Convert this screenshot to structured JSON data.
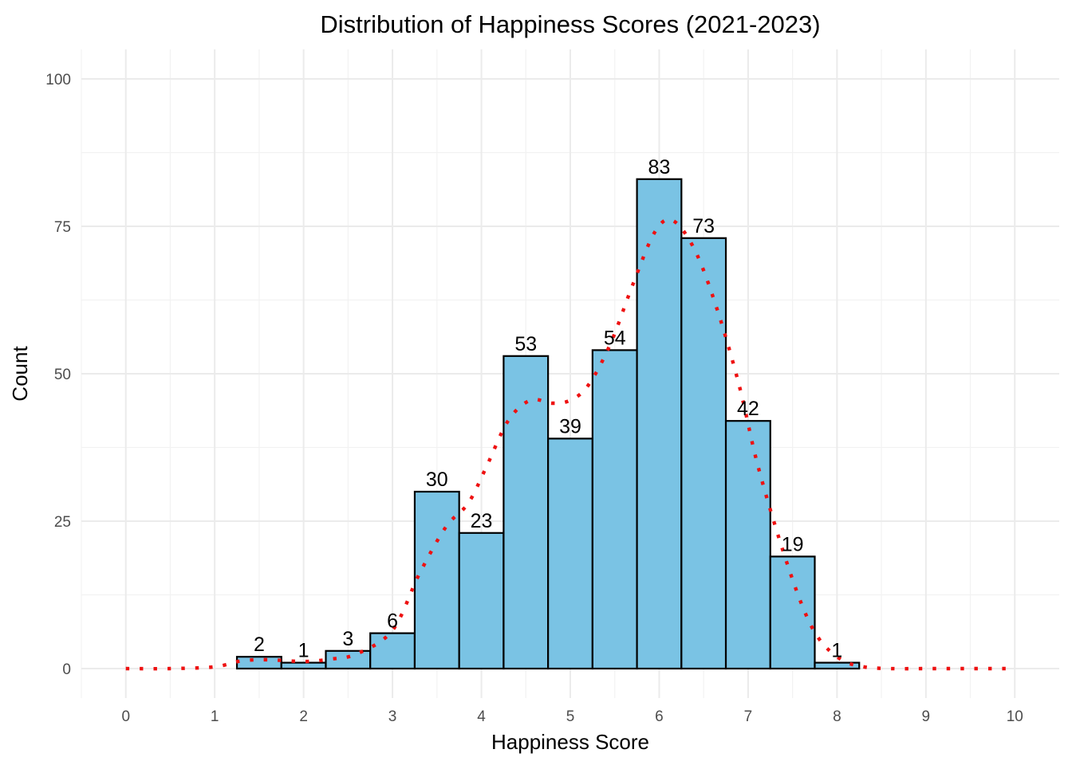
{
  "chart_data": {
    "type": "bar",
    "title": "Distribution of Happiness Scores (2021-2023)",
    "xlabel": "Happiness Score",
    "ylabel": "Count",
    "xlim": [
      -0.5,
      10.5
    ],
    "ylim": [
      -5,
      105
    ],
    "x_ticks": [
      0,
      1,
      2,
      3,
      4,
      5,
      6,
      7,
      8,
      9,
      10
    ],
    "y_ticks": [
      0,
      25,
      50,
      75,
      100
    ],
    "bin_width": 0.5,
    "bins": [
      {
        "x0": 0.75,
        "x1": 1.25,
        "count": 0
      },
      {
        "x0": 1.25,
        "x1": 1.75,
        "count": 2
      },
      {
        "x0": 1.75,
        "x1": 2.25,
        "count": 1
      },
      {
        "x0": 2.25,
        "x1": 2.75,
        "count": 3
      },
      {
        "x0": 2.75,
        "x1": 3.25,
        "count": 6
      },
      {
        "x0": 3.25,
        "x1": 3.75,
        "count": 30
      },
      {
        "x0": 3.75,
        "x1": 4.25,
        "count": 23
      },
      {
        "x0": 4.25,
        "x1": 4.75,
        "count": 53
      },
      {
        "x0": 4.75,
        "x1": 5.25,
        "count": 39
      },
      {
        "x0": 5.25,
        "x1": 5.75,
        "count": 54
      },
      {
        "x0": 5.75,
        "x1": 6.25,
        "count": 83
      },
      {
        "x0": 6.25,
        "x1": 6.75,
        "count": 73
      },
      {
        "x0": 6.75,
        "x1": 7.25,
        "count": 42
      },
      {
        "x0": 7.25,
        "x1": 7.75,
        "count": 19
      },
      {
        "x0": 7.75,
        "x1": 8.25,
        "count": 1
      },
      {
        "x0": 8.25,
        "x1": 8.75,
        "count": 0
      },
      {
        "x0": 8.75,
        "x1": 9.25,
        "count": 0
      },
      {
        "x0": 9.25,
        "x1": 9.75,
        "count": 0
      }
    ],
    "density_curve": {
      "style": "dotted",
      "x": [
        0,
        0.5,
        1.0,
        1.3,
        1.6,
        2.0,
        2.3,
        2.6,
        3.0,
        3.3,
        3.6,
        3.85,
        4.05,
        4.3,
        4.55,
        4.8,
        5.0,
        5.2,
        5.45,
        5.7,
        5.95,
        6.15,
        6.4,
        6.65,
        6.9,
        7.1,
        7.35,
        7.6,
        7.8,
        8.05,
        8.3,
        8.6,
        9.0,
        9.5,
        10.0
      ],
      "y": [
        0,
        0,
        0.3,
        1.3,
        1.5,
        1.2,
        1.6,
        2.5,
        6.5,
        16,
        24,
        28,
        34,
        42,
        45.5,
        45,
        45.5,
        48,
        55,
        65,
        74,
        76,
        71,
        61,
        48,
        35,
        22,
        11,
        5,
        1.5,
        0.3,
        0,
        0,
        0,
        0
      ]
    },
    "colors": {
      "bar_fill": "#7AC3E4",
      "bar_edge": "#000000",
      "density_line": "#EE1111",
      "grid": "#EBEBEB",
      "background": "#FFFFFF"
    },
    "grid": true,
    "legend": "none",
    "show_count_labels": true,
    "show_zero_count_labels": false
  }
}
